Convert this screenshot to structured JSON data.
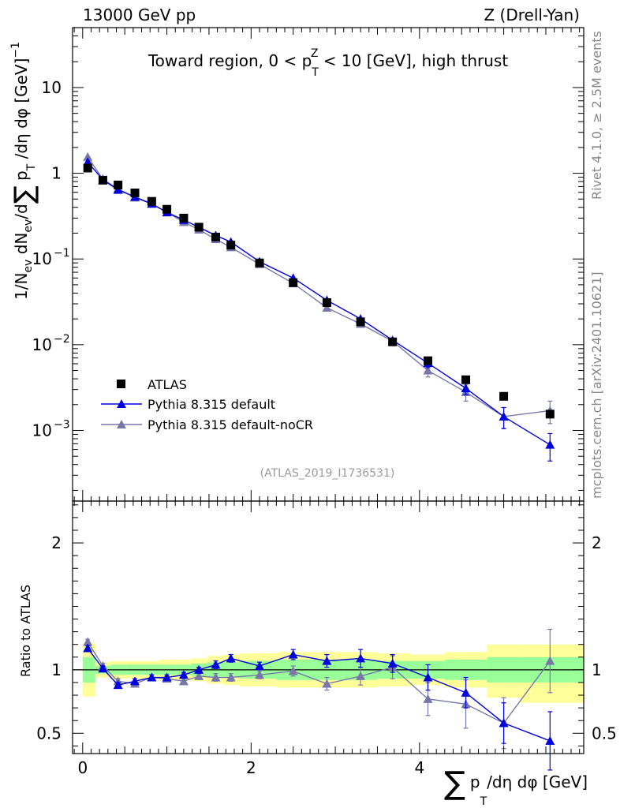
{
  "header": {
    "left": "13000 GeV pp",
    "right": "Z (Drell-Yan)"
  },
  "side_labels": {
    "rivet": "Rivet 4.1.0, ≥ 2.5M events",
    "mcplots": "mcplots.cern.ch [arXiv:2401.10621]"
  },
  "colors": {
    "atlas": "#000000",
    "pythia_default": "#0000dd",
    "pythia_nocr": "#7777aa",
    "band_green": "#99ff99",
    "band_yellow": "#ffff99"
  },
  "chart_data": [
    {
      "type": "line",
      "title": "Toward region, 0 < p_T^Z < 10 [GeV], high thrust",
      "title_parts": {
        "prefix": "Toward region, 0 < p",
        "sup": "Z",
        "sub": "T",
        "suffix": " < 10 [GeV], high thrust"
      },
      "ylabel": "1/N_ev dN_ev/d∑ p_T /dη dφ [GeV]^-1",
      "yscale": "log",
      "xlim": [
        -0.12,
        5.95
      ],
      "ylim": [
        0.00015,
        50
      ],
      "yticks": [
        {
          "value": 10,
          "label": "10"
        },
        {
          "value": 1,
          "label": "1"
        },
        {
          "value": 0.1,
          "label": "10",
          "exp": "−1"
        },
        {
          "value": 0.01,
          "label": "10",
          "exp": "−2"
        },
        {
          "value": 0.001,
          "label": "10",
          "exp": "−3"
        }
      ],
      "watermark": "(ATLAS_2019_I1736531)",
      "series": [
        {
          "name": "ATLAS",
          "marker": "square",
          "x": [
            0.06,
            0.24,
            0.42,
            0.62,
            0.82,
            1.0,
            1.2,
            1.38,
            1.58,
            1.76,
            2.1,
            2.5,
            2.9,
            3.3,
            3.68,
            4.1,
            4.55,
            5.0,
            5.55
          ],
          "y": [
            1.15,
            0.83,
            0.73,
            0.59,
            0.47,
            0.38,
            0.3,
            0.235,
            0.18,
            0.145,
            0.09,
            0.053,
            0.031,
            0.0185,
            0.0108,
            0.0065,
            0.0039,
            0.0025,
            0.00155
          ]
        },
        {
          "name": "Pythia 8.315 default",
          "marker": "triangle",
          "x": [
            0.06,
            0.24,
            0.42,
            0.62,
            0.82,
            1.0,
            1.2,
            1.38,
            1.58,
            1.76,
            2.1,
            2.5,
            2.9,
            3.3,
            3.68,
            4.1,
            4.55,
            5.0,
            5.55
          ],
          "y": [
            1.35,
            0.84,
            0.64,
            0.53,
            0.44,
            0.35,
            0.285,
            0.235,
            0.188,
            0.158,
            0.093,
            0.06,
            0.033,
            0.02,
            0.0113,
            0.0061,
            0.0031,
            0.00145,
            0.00068
          ],
          "err": [
            0,
            0,
            0,
            0,
            0,
            0,
            0,
            0,
            0,
            0,
            0,
            0,
            0,
            0,
            0,
            0.0007,
            0.0005,
            0.0004,
            0.00024
          ]
        },
        {
          "name": "Pythia 8.315 default-noCR",
          "marker": "triangle",
          "x": [
            0.06,
            0.24,
            0.42,
            0.62,
            0.82,
            1.0,
            1.2,
            1.38,
            1.58,
            1.76,
            2.1,
            2.5,
            2.9,
            3.3,
            3.68,
            4.1,
            4.55,
            5.0,
            5.55
          ],
          "y": [
            1.55,
            0.85,
            0.66,
            0.52,
            0.44,
            0.35,
            0.27,
            0.22,
            0.17,
            0.137,
            0.087,
            0.052,
            0.027,
            0.0175,
            0.011,
            0.005,
            0.0028,
            0.00145,
            0.0017
          ],
          "err": [
            0,
            0,
            0,
            0,
            0,
            0,
            0,
            0,
            0,
            0,
            0,
            0,
            0,
            0,
            0,
            0.0008,
            0.0006,
            0.0004,
            0.0005
          ]
        }
      ]
    },
    {
      "type": "line",
      "ylabel": "Ratio to ATLAS",
      "xlabel": "∑ p_T /dη dφ [GeV]",
      "xlabel_parts": {
        "sigma": "∑",
        "p": "p",
        "sub": "T",
        "rest": "/dη dφ [GeV]"
      },
      "xlim": [
        -0.12,
        5.95
      ],
      "ylim": [
        0.34,
        2.33
      ],
      "yticks": [
        {
          "value": 0.5,
          "label": "0.5"
        },
        {
          "value": 1,
          "label": "1"
        },
        {
          "value": 2,
          "label": "2"
        }
      ],
      "xticks": [
        {
          "value": 0,
          "label": "0"
        },
        {
          "value": 2,
          "label": "2"
        },
        {
          "value": 4,
          "label": "4"
        }
      ],
      "bands": {
        "edges": [
          0,
          0.15,
          0.33,
          0.52,
          0.72,
          0.91,
          1.1,
          1.29,
          1.48,
          1.67,
          1.86,
          2.3,
          2.7,
          3.1,
          3.5,
          3.9,
          4.3,
          4.8,
          5.2,
          5.95
        ],
        "green": [
          [
            0.9,
            1.1
          ],
          [
            0.97,
            1.03
          ],
          [
            0.96,
            1.04
          ],
          [
            0.96,
            1.04
          ],
          [
            0.96,
            1.04
          ],
          [
            0.96,
            1.04
          ],
          [
            0.96,
            1.04
          ],
          [
            0.95,
            1.05
          ],
          [
            0.94,
            1.06
          ],
          [
            0.94,
            1.06
          ],
          [
            0.93,
            1.07
          ],
          [
            0.92,
            1.08
          ],
          [
            0.92,
            1.08
          ],
          [
            0.92,
            1.08
          ],
          [
            0.93,
            1.07
          ],
          [
            0.93,
            1.07
          ],
          [
            0.92,
            1.08
          ],
          [
            0.9,
            1.1
          ],
          [
            0.9,
            1.1
          ]
        ],
        "yellow": [
          [
            0.79,
            1.21
          ],
          [
            0.94,
            1.06
          ],
          [
            0.93,
            1.07
          ],
          [
            0.93,
            1.07
          ],
          [
            0.93,
            1.07
          ],
          [
            0.92,
            1.08
          ],
          [
            0.92,
            1.08
          ],
          [
            0.91,
            1.09
          ],
          [
            0.89,
            1.11
          ],
          [
            0.88,
            1.12
          ],
          [
            0.87,
            1.13
          ],
          [
            0.86,
            1.14
          ],
          [
            0.86,
            1.14
          ],
          [
            0.86,
            1.14
          ],
          [
            0.87,
            1.13
          ],
          [
            0.88,
            1.12
          ],
          [
            0.86,
            1.14
          ],
          [
            0.78,
            1.2
          ],
          [
            0.74,
            1.2
          ]
        ]
      },
      "series": [
        {
          "name": "Pythia 8.315 default",
          "x": [
            0.06,
            0.24,
            0.42,
            0.62,
            0.82,
            1.0,
            1.2,
            1.38,
            1.58,
            1.76,
            2.1,
            2.5,
            2.9,
            3.3,
            3.68,
            4.1,
            4.55,
            5.0,
            5.55
          ],
          "y": [
            1.17,
            1.01,
            0.88,
            0.91,
            0.94,
            0.94,
            0.96,
            1.0,
            1.04,
            1.09,
            1.03,
            1.12,
            1.07,
            1.09,
            1.05,
            0.94,
            0.82,
            0.58,
            0.44
          ],
          "err": [
            0.02,
            0.02,
            0.02,
            0.02,
            0.02,
            0.02,
            0.02,
            0.02,
            0.03,
            0.03,
            0.03,
            0.04,
            0.05,
            0.07,
            0.07,
            0.1,
            0.12,
            0.16,
            0.23
          ]
        },
        {
          "name": "Pythia 8.315 default-noCR",
          "x": [
            0.06,
            0.24,
            0.42,
            0.62,
            0.82,
            1.0,
            1.2,
            1.38,
            1.58,
            1.76,
            2.1,
            2.5,
            2.9,
            3.3,
            3.68,
            4.1,
            4.55,
            5.0,
            5.55
          ],
          "y": [
            1.22,
            1.03,
            0.91,
            0.89,
            0.94,
            0.93,
            0.91,
            0.95,
            0.94,
            0.94,
            0.96,
            0.99,
            0.89,
            0.95,
            1.02,
            0.77,
            0.73,
            0.58,
            1.07
          ],
          "err": [
            0.02,
            0.02,
            0.02,
            0.02,
            0.02,
            0.02,
            0.02,
            0.02,
            0.03,
            0.03,
            0.03,
            0.04,
            0.05,
            0.07,
            0.09,
            0.13,
            0.19,
            0.2,
            0.25
          ]
        }
      ]
    }
  ]
}
